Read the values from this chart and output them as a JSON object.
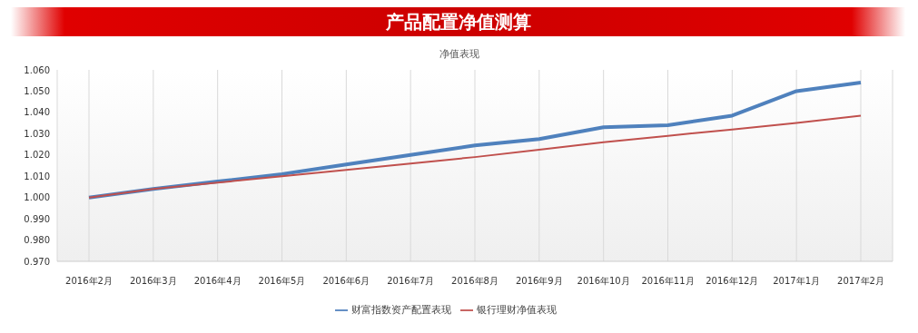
{
  "chart_data": {
    "type": "line",
    "title": "产品配置净值测算",
    "subtitle": "净值表现",
    "categories": [
      "2016年2月",
      "2016年3月",
      "2016年4月",
      "2016年5月",
      "2016年6月",
      "2016年7月",
      "2016年8月",
      "2016年9月",
      "2016年10月",
      "2016年11月",
      "2016年12月",
      "2017年1月",
      "2017年2月"
    ],
    "series": [
      {
        "name": "财富指数资产配置表现",
        "color": "#4f81bd",
        "values": [
          1.0,
          1.004,
          1.0075,
          1.011,
          1.0155,
          1.02,
          1.0245,
          1.0275,
          1.033,
          1.034,
          1.0385,
          1.05,
          1.054
        ]
      },
      {
        "name": "银行理财净值表现",
        "color": "#c0504d",
        "values": [
          1.0,
          1.004,
          1.007,
          1.01,
          1.013,
          1.016,
          1.019,
          1.0225,
          1.026,
          1.029,
          1.032,
          1.035,
          1.0385
        ]
      }
    ],
    "ylim": [
      0.97,
      1.06
    ],
    "yticks": [
      {
        "value": 0.97,
        "label": "0.970"
      },
      {
        "value": 0.98,
        "label": "0.980"
      },
      {
        "value": 0.99,
        "label": "0.990"
      },
      {
        "value": 1.0,
        "label": "1.000"
      },
      {
        "value": 1.01,
        "label": "1.010"
      },
      {
        "value": 1.02,
        "label": "1.020"
      },
      {
        "value": 1.03,
        "label": "1.030"
      },
      {
        "value": 1.04,
        "label": "1.040"
      },
      {
        "value": 1.05,
        "label": "1.050"
      },
      {
        "value": 1.06,
        "label": "1.060"
      }
    ],
    "grid": "x",
    "legend": "bottom",
    "marker": "none",
    "line_style": "solid"
  }
}
